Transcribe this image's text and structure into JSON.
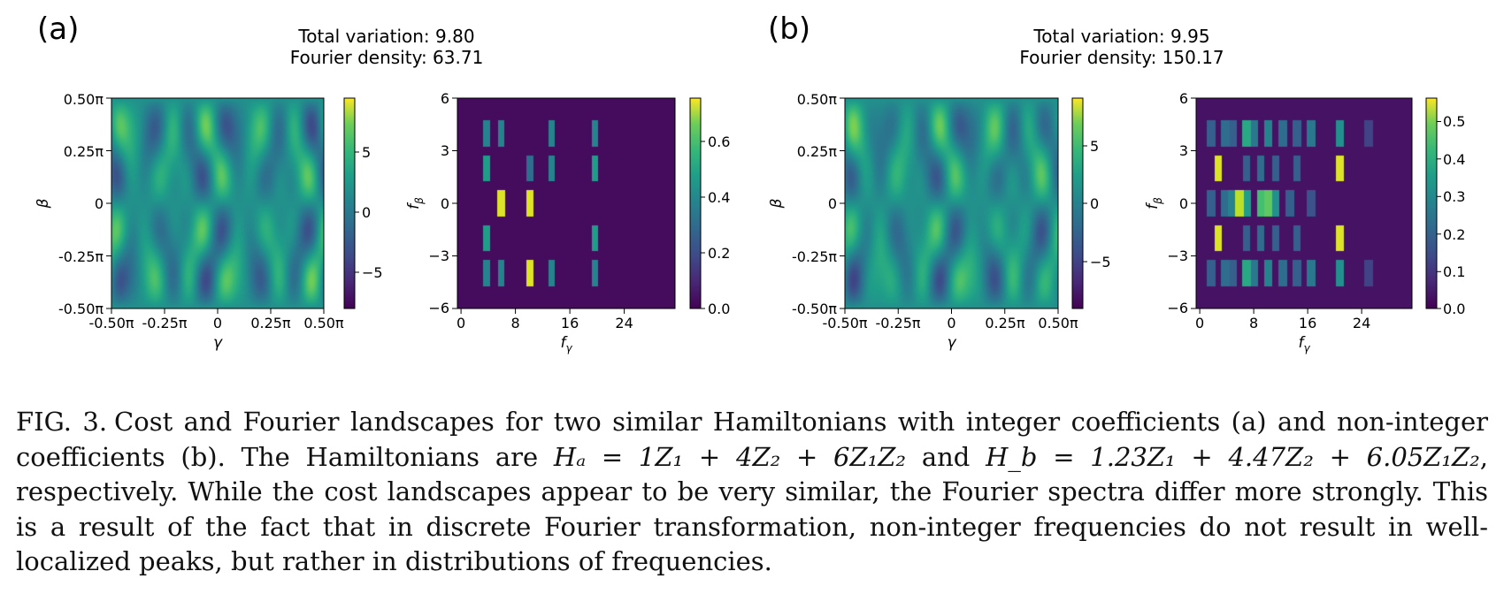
{
  "figure": {
    "panels": [
      {
        "label": "(a)",
        "title_line1": "Total variation: 9.80",
        "title_line2": "Fourier density: 63.71",
        "cost_map": {
          "x_label": "γ",
          "y_label": "β",
          "x_ticks": [
            "-0.50π",
            "-0.25π",
            "0",
            "0.25π",
            "0.50π"
          ],
          "y_ticks": [
            "0.50π",
            "0.25π",
            "0",
            "-0.25π",
            "-0.50π"
          ],
          "colorbar_ticks": [
            "5",
            "0",
            "−5"
          ],
          "color_range": [
            -8.5,
            8.5
          ]
        },
        "fourier_map": {
          "x_label": "fγ",
          "y_label": "fβ",
          "x_ticks": [
            "0",
            "8",
            "16",
            "24"
          ],
          "y_ticks": [
            "6",
            "3",
            "0",
            "−3",
            "−6"
          ],
          "colorbar_ticks": [
            "0.6",
            "0.4",
            "0.2",
            "0.0"
          ],
          "color_range": [
            0,
            0.75
          ]
        }
      },
      {
        "label": "(b)",
        "title_line1": "Total variation: 9.95",
        "title_line2": "Fourier density: 150.17",
        "cost_map": {
          "x_label": "γ",
          "y_label": "β",
          "x_ticks": [
            "-0.50π",
            "-0.25π",
            "0",
            "0.25π",
            "0.50π"
          ],
          "y_ticks": [
            "0.50π",
            "0.25π",
            "0",
            "-0.25π",
            "-0.50π"
          ],
          "colorbar_ticks": [
            "5",
            "0",
            "−5"
          ],
          "color_range": [
            -9,
            9
          ]
        },
        "fourier_map": {
          "x_label": "fγ",
          "y_label": "fβ",
          "x_ticks": [
            "0",
            "8",
            "16",
            "24"
          ],
          "y_ticks": [
            "6",
            "3",
            "0",
            "−3",
            "−6"
          ],
          "colorbar_ticks": [
            "0.5",
            "0.4",
            "0.3",
            "0.2",
            "0.1",
            "0.0"
          ],
          "color_range": [
            0,
            0.56
          ]
        }
      }
    ]
  },
  "caption": {
    "label": "FIG. 3.",
    "part1": "Cost and Fourier landscapes for two similar Hamiltonians with integer coefficients (a) and non-integer coefficients (b).  The Hamiltonians are ",
    "eq_a": "Hₐ = 1Z₁ + 4Z₂ + 6Z₁Z₂",
    "part2": " and ",
    "eq_b": "H_b = 1.23Z₁ + 4.47Z₂ + 6.05Z₁Z₂",
    "part3": ", respectively. While the cost landscapes appear to be very similar, the Fourier spectra differ more strongly. This is a result of the fact that in discrete Fourier transformation, non-integer frequencies do not result in well-localized peaks, but rather in distributions of frequencies."
  }
}
